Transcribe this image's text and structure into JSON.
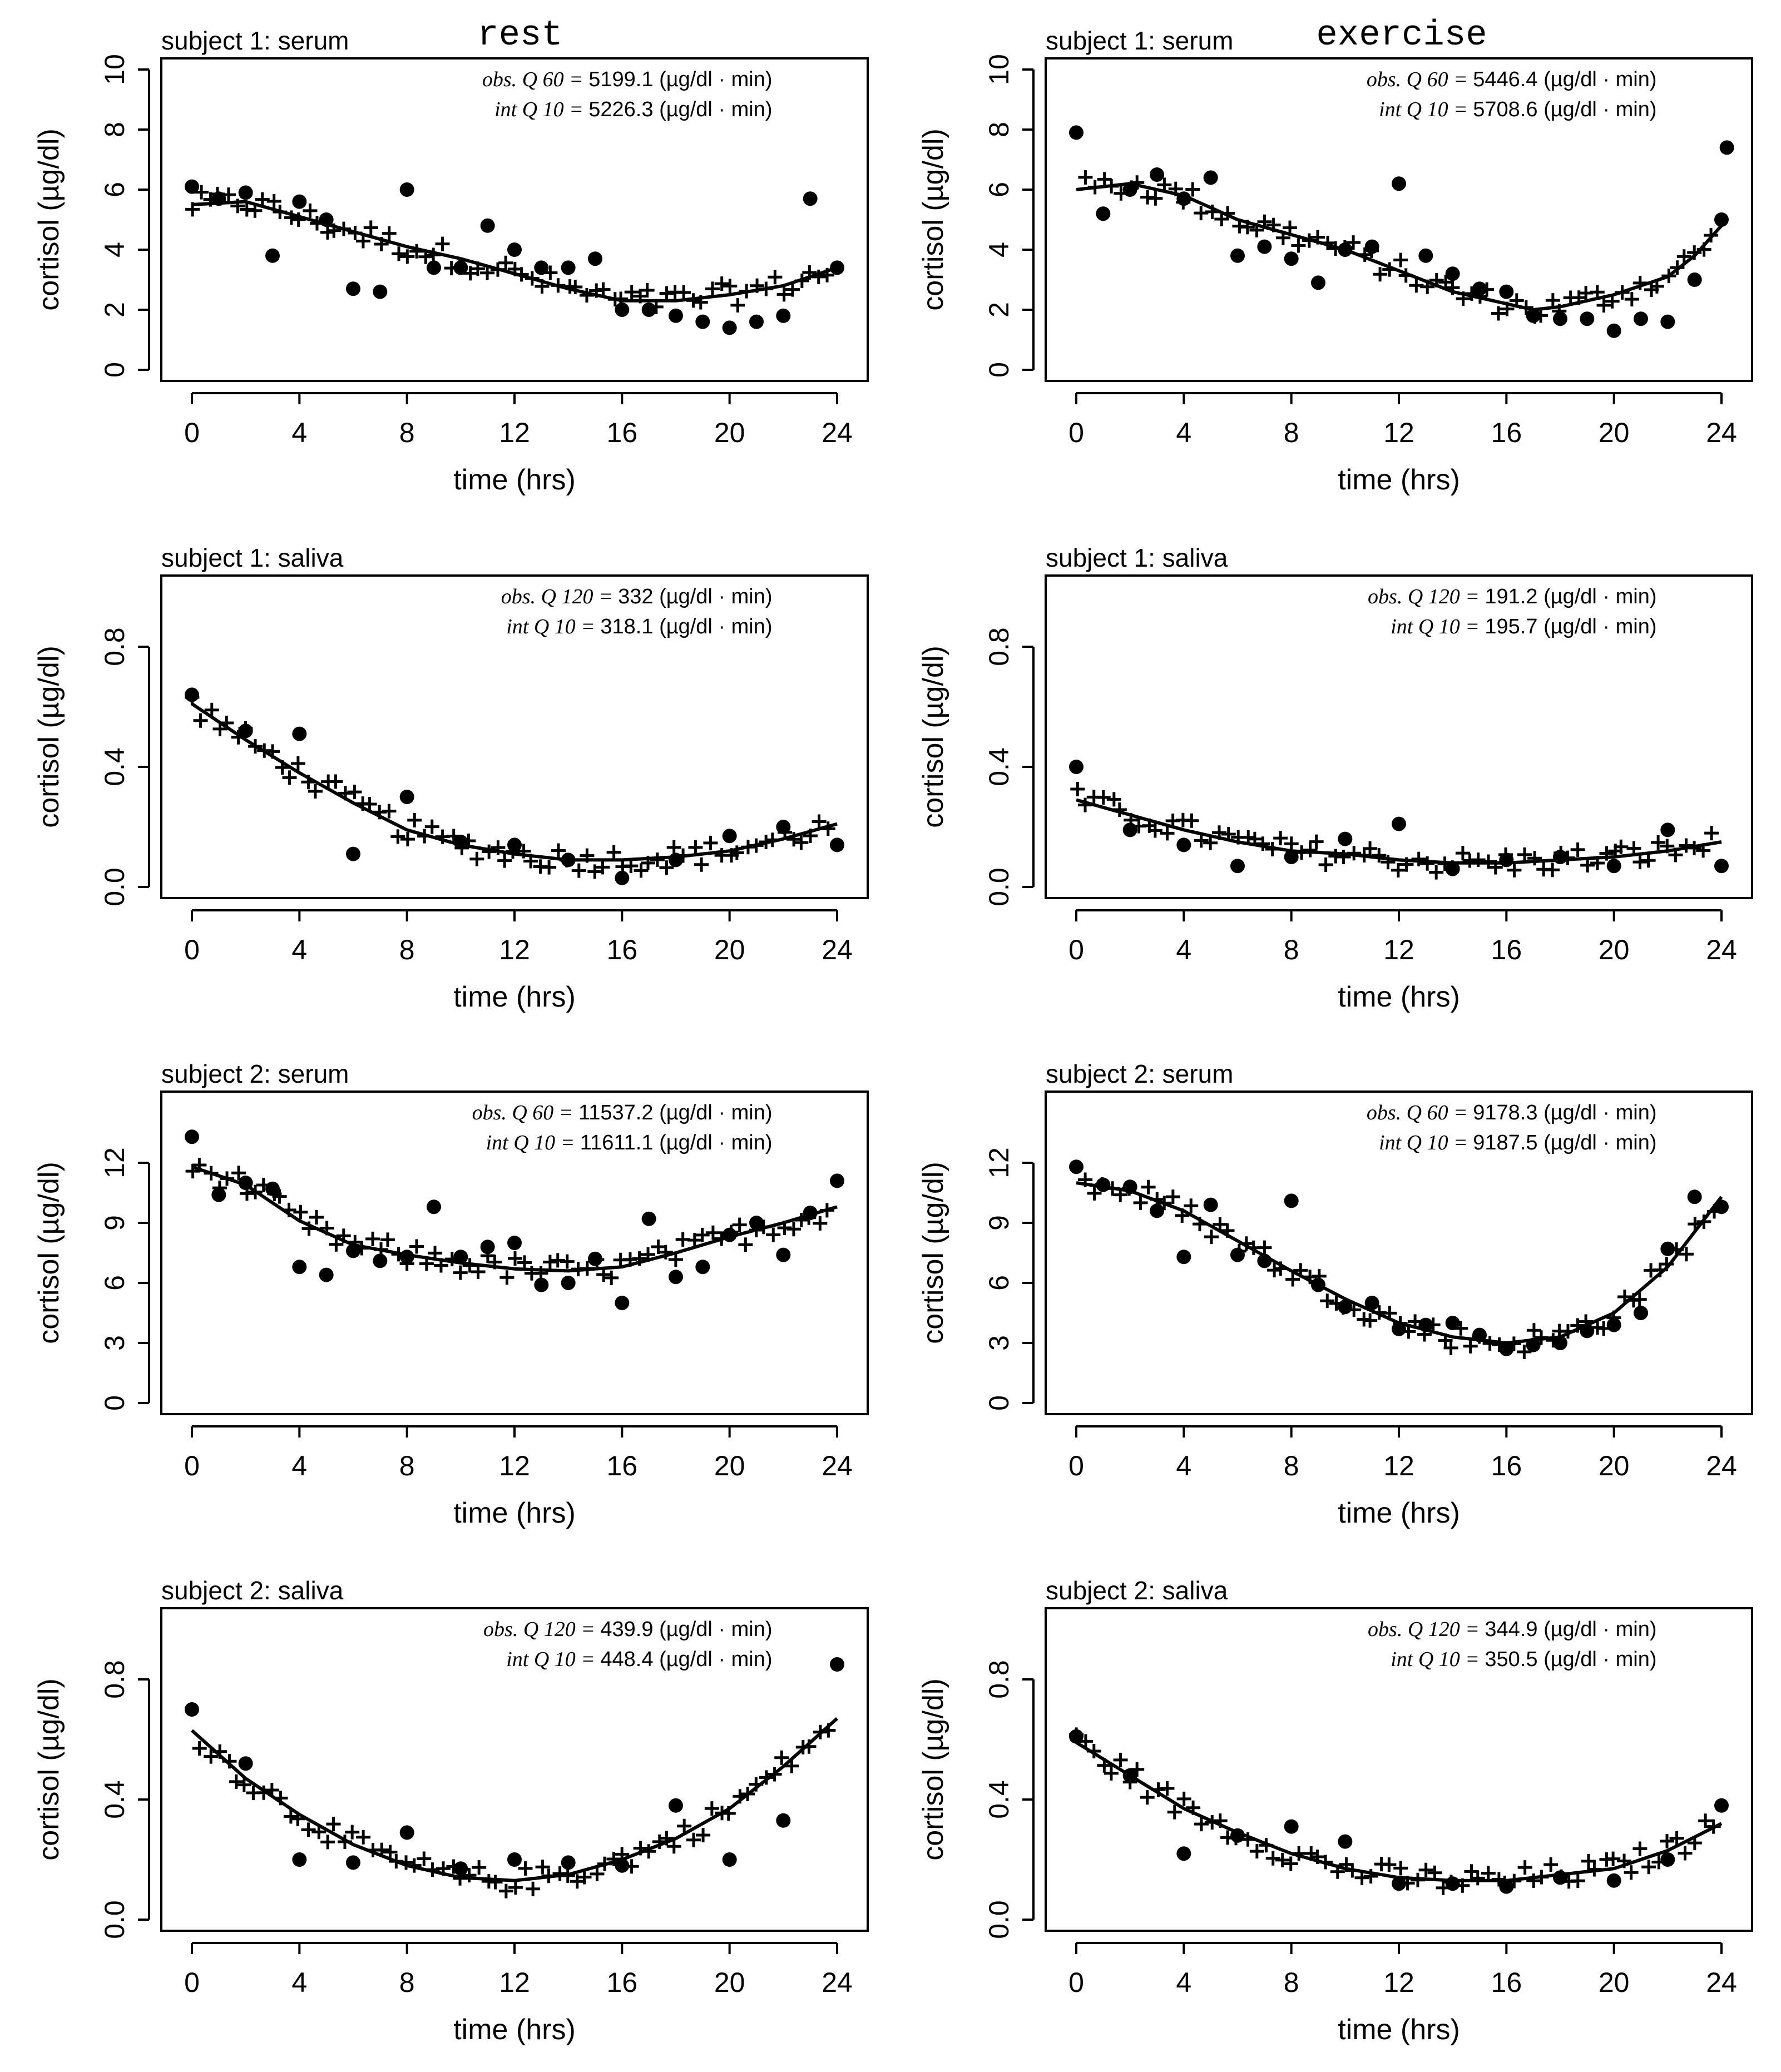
{
  "column_titles": {
    "rest": "rest",
    "exercise": "exercise"
  },
  "chart_data": [
    {
      "type": "scatter",
      "title": "subject 1: serum",
      "column": "rest",
      "xlabel": "time (hrs)",
      "ylabel": "cortisol (µg/dl)",
      "xlim": [
        0,
        24
      ],
      "ylim": [
        0,
        10
      ],
      "xticks": [
        "0",
        "4",
        "8",
        "12",
        "16",
        "20",
        "24"
      ],
      "yticks": [
        "0",
        "2",
        "4",
        "6",
        "8",
        "10"
      ],
      "annotation": {
        "obs_label": "obs. Q 60 =",
        "obs_value": "5199.1",
        "int_label": "int Q 10 =",
        "int_value": "5226.3",
        "unit": "(µg/dl · min)"
      },
      "observed_hourly": {
        "x": [
          0,
          1,
          2,
          3,
          4,
          5,
          6,
          7,
          8,
          9,
          10,
          11,
          12,
          13,
          14,
          15,
          16,
          17,
          18,
          19,
          20,
          21,
          22,
          23,
          24
        ],
        "y": [
          6.1,
          5.7,
          5.9,
          3.8,
          5.6,
          5.0,
          2.7,
          2.6,
          6.0,
          3.4,
          3.4,
          4.8,
          4.0,
          3.4,
          3.4,
          3.7,
          2.0,
          2.0,
          1.8,
          1.6,
          1.4,
          1.6,
          1.8,
          5.7,
          3.4
        ]
      },
      "smoothed_curve": {
        "x": [
          0,
          2,
          4,
          6,
          8,
          10,
          12,
          14,
          16,
          18,
          20,
          22,
          24
        ],
        "y": [
          5.5,
          5.6,
          5.1,
          4.6,
          4.1,
          3.7,
          3.2,
          2.7,
          2.3,
          2.3,
          2.5,
          2.8,
          3.4
        ]
      }
    },
    {
      "type": "scatter",
      "title": "subject 1: serum",
      "column": "exercise",
      "xlabel": "time (hrs)",
      "ylabel": "cortisol (µg/dl)",
      "xlim": [
        0,
        24
      ],
      "ylim": [
        0,
        10
      ],
      "xticks": [
        "0",
        "4",
        "8",
        "12",
        "16",
        "20",
        "24"
      ],
      "yticks": [
        "0",
        "2",
        "4",
        "6",
        "8",
        "10"
      ],
      "annotation": {
        "obs_label": "obs. Q 60 =",
        "obs_value": "5446.4",
        "int_label": "int Q 10 =",
        "int_value": "5708.6",
        "unit": "(µg/dl · min)"
      },
      "observed_hourly": {
        "x": [
          0,
          1,
          2,
          3,
          4,
          5,
          6,
          7,
          8,
          9,
          10,
          11,
          12,
          13,
          14,
          15,
          16,
          17,
          18,
          19,
          20,
          21,
          22,
          23,
          24
        ],
        "y": [
          7.9,
          5.2,
          6.0,
          6.5,
          5.7,
          6.4,
          3.8,
          4.1,
          3.7,
          2.9,
          4.0,
          4.1,
          6.2,
          3.8,
          3.2,
          2.7,
          2.6,
          1.8,
          1.7,
          1.7,
          1.3,
          1.7,
          1.6,
          3.0,
          5.0
        ]
      },
      "extra_points": {
        "x": [
          24.2
        ],
        "y": [
          7.4
        ]
      },
      "smoothed_curve": {
        "x": [
          0,
          2,
          4,
          6,
          8,
          10,
          12,
          14,
          16,
          17,
          18,
          20,
          22,
          23,
          24
        ],
        "y": [
          6.0,
          6.2,
          5.8,
          5.0,
          4.5,
          4.0,
          3.3,
          2.6,
          2.2,
          2.0,
          2.1,
          2.5,
          3.1,
          3.8,
          4.8
        ]
      }
    },
    {
      "type": "scatter",
      "title": "subject 1: saliva",
      "column": "rest",
      "xlabel": "time (hrs)",
      "ylabel": "cortisol (µg/dl)",
      "xlim": [
        0,
        24
      ],
      "ylim": [
        0,
        1.0
      ],
      "xticks": [
        "0",
        "4",
        "8",
        "12",
        "16",
        "20",
        "24"
      ],
      "yticks": [
        "0.0",
        "0.4",
        "0.8"
      ],
      "annotation": {
        "obs_label": "obs. Q 120 =",
        "obs_value": "332",
        "int_label": "int Q 10 =",
        "int_value": "318.1",
        "unit": "(µg/dl · min)"
      },
      "observed_hourly": {
        "x": [
          0,
          2,
          4,
          6,
          8,
          10,
          12,
          14,
          16,
          18,
          20,
          22,
          24
        ],
        "y": [
          0.64,
          0.52,
          0.51,
          0.11,
          0.3,
          0.15,
          0.14,
          0.09,
          0.03,
          0.09,
          0.17,
          0.2,
          0.14
        ]
      },
      "smoothed_curve": {
        "x": [
          0,
          2,
          4,
          6,
          8,
          10,
          12,
          14,
          16,
          18,
          20,
          22,
          24
        ],
        "y": [
          0.61,
          0.49,
          0.38,
          0.28,
          0.19,
          0.14,
          0.11,
          0.09,
          0.09,
          0.1,
          0.12,
          0.16,
          0.21
        ]
      }
    },
    {
      "type": "scatter",
      "title": "subject 1: saliva",
      "column": "exercise",
      "xlabel": "time (hrs)",
      "ylabel": "cortisol (µg/dl)",
      "xlim": [
        0,
        24
      ],
      "ylim": [
        0,
        1.0
      ],
      "xticks": [
        "0",
        "4",
        "8",
        "12",
        "16",
        "20",
        "24"
      ],
      "yticks": [
        "0.0",
        "0.4",
        "0.8"
      ],
      "annotation": {
        "obs_label": "obs. Q 120 =",
        "obs_value": "191.2",
        "int_label": "int Q 10 =",
        "int_value": "195.7",
        "unit": "(µg/dl · min)"
      },
      "observed_hourly": {
        "x": [
          0,
          2,
          4,
          6,
          8,
          10,
          12,
          14,
          16,
          18,
          20,
          22,
          24
        ],
        "y": [
          0.4,
          0.19,
          0.14,
          0.07,
          0.1,
          0.16,
          0.21,
          0.06,
          0.09,
          0.1,
          0.07,
          0.19,
          0.07
        ]
      },
      "smoothed_curve": {
        "x": [
          0,
          2,
          4,
          6,
          8,
          10,
          12,
          14,
          16,
          18,
          20,
          22,
          24
        ],
        "y": [
          0.29,
          0.24,
          0.19,
          0.15,
          0.12,
          0.11,
          0.09,
          0.08,
          0.08,
          0.09,
          0.1,
          0.12,
          0.15
        ]
      }
    },
    {
      "type": "scatter",
      "title": "subject 2: serum",
      "column": "rest",
      "xlabel": "time (hrs)",
      "ylabel": "cortisol (µg/dl)",
      "xlim": [
        0,
        24
      ],
      "ylim": [
        0,
        15
      ],
      "xticks": [
        "0",
        "4",
        "8",
        "12",
        "16",
        "20",
        "24"
      ],
      "yticks": [
        "0",
        "3",
        "6",
        "9",
        "12"
      ],
      "annotation": {
        "obs_label": "obs. Q 60 =",
        "obs_value": "11537.2",
        "int_label": "int Q 10 =",
        "int_value": "11611.1",
        "unit": "(µg/dl · min)"
      },
      "observed_hourly": {
        "x": [
          0,
          1,
          2,
          3,
          4,
          5,
          6,
          7,
          8,
          9,
          10,
          11,
          12,
          13,
          14,
          15,
          16,
          17,
          18,
          19,
          20,
          21,
          22,
          23,
          24
        ],
        "y": [
          13.3,
          10.4,
          11.0,
          10.7,
          6.8,
          6.4,
          7.6,
          7.1,
          7.3,
          9.8,
          7.3,
          7.8,
          8.0,
          5.9,
          6.0,
          7.2,
          5.0,
          9.2,
          6.3,
          6.8,
          8.4,
          9.0,
          7.4,
          9.5,
          11.1
        ]
      },
      "smoothed_curve": {
        "x": [
          0,
          2,
          4,
          6,
          8,
          10,
          12,
          14,
          16,
          18,
          20,
          22,
          24
        ],
        "y": [
          11.8,
          10.9,
          9.1,
          7.9,
          7.4,
          7.0,
          6.7,
          6.6,
          6.8,
          7.5,
          8.3,
          9.0,
          9.8
        ]
      }
    },
    {
      "type": "scatter",
      "title": "subject 2: serum",
      "column": "exercise",
      "xlabel": "time (hrs)",
      "ylabel": "cortisol (µg/dl)",
      "xlim": [
        0,
        24
      ],
      "ylim": [
        0,
        15
      ],
      "xticks": [
        "0",
        "4",
        "8",
        "12",
        "16",
        "20",
        "24"
      ],
      "yticks": [
        "0",
        "3",
        "6",
        "9",
        "12"
      ],
      "annotation": {
        "obs_label": "obs. Q 60 =",
        "obs_value": "9178.3",
        "int_label": "int Q 10 =",
        "int_value": "9187.5",
        "unit": "(µg/dl · min)"
      },
      "observed_hourly": {
        "x": [
          0,
          1,
          2,
          3,
          4,
          5,
          6,
          7,
          8,
          9,
          10,
          11,
          12,
          13,
          14,
          15,
          16,
          17,
          18,
          19,
          20,
          21,
          22,
          23,
          24
        ],
        "y": [
          11.8,
          10.9,
          10.8,
          9.6,
          7.3,
          9.9,
          7.4,
          7.1,
          10.1,
          5.9,
          4.8,
          5.0,
          3.7,
          3.9,
          4.0,
          3.4,
          2.7,
          2.9,
          3.0,
          3.6,
          3.9,
          4.5,
          7.7,
          10.3,
          9.8
        ]
      },
      "smoothed_curve": {
        "x": [
          0,
          2,
          4,
          6,
          8,
          10,
          12,
          14,
          16,
          18,
          20,
          22,
          24
        ],
        "y": [
          11.0,
          10.6,
          9.6,
          8.1,
          6.6,
          5.2,
          4.0,
          3.3,
          3.0,
          3.3,
          4.5,
          6.8,
          10.3
        ]
      }
    },
    {
      "type": "scatter",
      "title": "subject 2: saliva",
      "column": "rest",
      "xlabel": "time (hrs)",
      "ylabel": "cortisol (µg/dl)",
      "xlim": [
        0,
        24
      ],
      "ylim": [
        0,
        1.0
      ],
      "xticks": [
        "0",
        "4",
        "8",
        "12",
        "16",
        "20",
        "24"
      ],
      "yticks": [
        "0.0",
        "0.4",
        "0.8"
      ],
      "annotation": {
        "obs_label": "obs. Q 120 =",
        "obs_value": "439.9",
        "int_label": "int Q 10 =",
        "int_value": "448.4",
        "unit": "(µg/dl · min)"
      },
      "observed_hourly": {
        "x": [
          0,
          2,
          4,
          6,
          8,
          10,
          12,
          14,
          16,
          18,
          20,
          22,
          24
        ],
        "y": [
          0.7,
          0.52,
          0.2,
          0.19,
          0.29,
          0.17,
          0.2,
          0.19,
          0.18,
          0.38,
          0.2,
          0.33,
          0.85
        ]
      },
      "smoothed_curve": {
        "x": [
          0,
          2,
          4,
          6,
          8,
          10,
          12,
          14,
          16,
          18,
          20,
          22,
          24
        ],
        "y": [
          0.63,
          0.47,
          0.35,
          0.25,
          0.18,
          0.14,
          0.13,
          0.15,
          0.2,
          0.27,
          0.37,
          0.51,
          0.67
        ]
      }
    },
    {
      "type": "scatter",
      "title": "subject 2: saliva",
      "column": "exercise",
      "xlabel": "time (hrs)",
      "ylabel": "cortisol (µg/dl)",
      "xlim": [
        0,
        24
      ],
      "ylim": [
        0,
        1.0
      ],
      "xticks": [
        "0",
        "4",
        "8",
        "12",
        "16",
        "20",
        "24"
      ],
      "yticks": [
        "0.0",
        "0.4",
        "0.8"
      ],
      "annotation": {
        "obs_label": "obs. Q 120 =",
        "obs_value": "344.9",
        "int_label": "int Q 10 =",
        "int_value": "350.5",
        "unit": "(µg/dl · min)"
      },
      "observed_hourly": {
        "x": [
          0,
          2,
          4,
          6,
          8,
          10,
          12,
          14,
          16,
          18,
          20,
          22,
          24
        ],
        "y": [
          0.61,
          0.48,
          0.22,
          0.28,
          0.31,
          0.26,
          0.12,
          0.12,
          0.11,
          0.14,
          0.13,
          0.2,
          0.38
        ]
      },
      "smoothed_curve": {
        "x": [
          0,
          2,
          4,
          6,
          8,
          10,
          12,
          14,
          16,
          18,
          20,
          22,
          24
        ],
        "y": [
          0.59,
          0.48,
          0.37,
          0.29,
          0.22,
          0.17,
          0.14,
          0.13,
          0.13,
          0.15,
          0.17,
          0.23,
          0.32
        ]
      }
    }
  ]
}
